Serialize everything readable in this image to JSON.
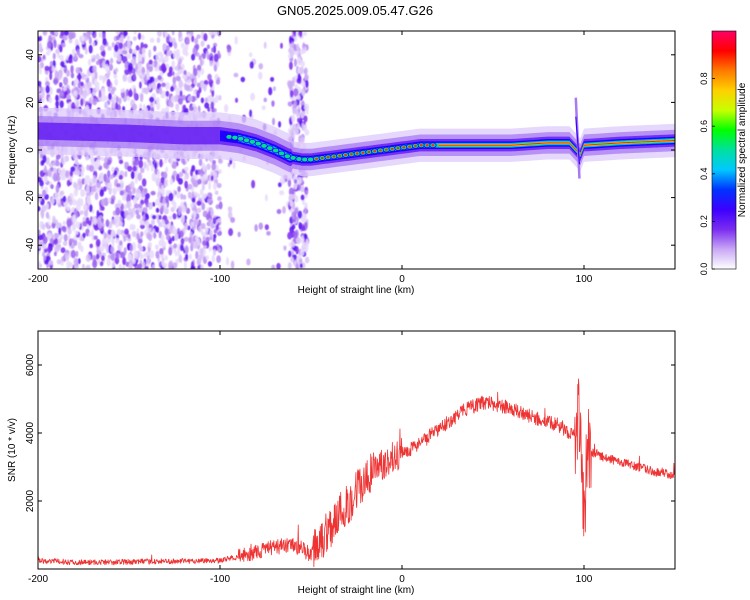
{
  "title": "GN05.2025.009.05.47.G26",
  "chart_data": [
    {
      "type": "heatmap",
      "xlabel": "Height of straight line (km)",
      "ylabel": "Frequency (Hz)",
      "xlim": [
        -200,
        150
      ],
      "ylim": [
        -50,
        50
      ],
      "x_ticks": [
        -200,
        -100,
        0,
        100
      ],
      "x_tick_labels": [
        "-200",
        "-100",
        "0",
        "100"
      ],
      "y_ticks": [
        -40,
        -20,
        0,
        20,
        40
      ],
      "y_tick_labels": [
        "-40",
        "-20",
        "0",
        "20",
        "40"
      ],
      "ridge": {
        "x": [
          -200,
          -150,
          -120,
          -100,
          -90,
          -80,
          -70,
          -62,
          -55,
          -50,
          -40,
          -30,
          -20,
          -10,
          0,
          10,
          20,
          40,
          60,
          80,
          92,
          98,
          100,
          120,
          150
        ],
        "frequency": [
          8,
          7,
          6,
          6,
          5,
          3,
          0,
          -3,
          -4,
          -4,
          -3,
          -2,
          -1,
          0,
          1,
          2,
          2,
          2,
          2,
          3,
          3,
          -2,
          2,
          3,
          4
        ]
      },
      "colorbar": {
        "label": "Normalized spectral amplitude",
        "range": [
          0,
          1
        ],
        "ticks": [
          0.0,
          0.2,
          0.4,
          0.6,
          0.8
        ],
        "tick_labels": [
          "0.0",
          "0.2",
          "0.4",
          "0.6",
          "0.8"
        ],
        "colors": [
          "#ffffff",
          "#c9a7f5",
          "#7a2cf0",
          "#3b00ff",
          "#0033ff",
          "#00c8ff",
          "#00e0a0",
          "#00ff00",
          "#c8ff00",
          "#ffd000",
          "#ff7a00",
          "#ff0000",
          "#ff0066"
        ]
      },
      "grid": false,
      "legend": "none"
    },
    {
      "type": "line",
      "xlabel": "Height of straight line (km)",
      "ylabel": "SNR (10 * v/v)",
      "xlim": [
        -200,
        150
      ],
      "ylim": [
        0,
        7000
      ],
      "x_ticks": [
        -200,
        -100,
        0,
        100
      ],
      "x_tick_labels": [
        "-200",
        "-100",
        "0",
        "100"
      ],
      "y_ticks": [
        2000,
        4000,
        6000
      ],
      "y_tick_labels": [
        "2000",
        "4000",
        "6000"
      ],
      "color": "#ee3333",
      "x": [
        -200,
        -180,
        -160,
        -140,
        -120,
        -100,
        -90,
        -80,
        -70,
        -60,
        -55,
        -50,
        -45,
        -40,
        -35,
        -30,
        -25,
        -20,
        -15,
        -10,
        -5,
        0,
        5,
        10,
        15,
        20,
        25,
        30,
        35,
        40,
        45,
        50,
        55,
        60,
        65,
        70,
        75,
        80,
        85,
        90,
        95,
        98,
        100,
        102,
        105,
        110,
        120,
        130,
        140,
        150
      ],
      "y": [
        250,
        200,
        200,
        220,
        230,
        260,
        350,
        500,
        650,
        700,
        600,
        400,
        800,
        1200,
        1600,
        1900,
        2300,
        2600,
        2900,
        3100,
        3300,
        3400,
        3550,
        3700,
        3900,
        4100,
        4300,
        4500,
        4700,
        4800,
        4900,
        4850,
        4800,
        4700,
        4600,
        4500,
        4400,
        4300,
        4250,
        4100,
        3900,
        4500,
        1500,
        3700,
        3400,
        3300,
        3150,
        3000,
        2850,
        2750
      ],
      "grid": false,
      "legend": "none"
    }
  ]
}
